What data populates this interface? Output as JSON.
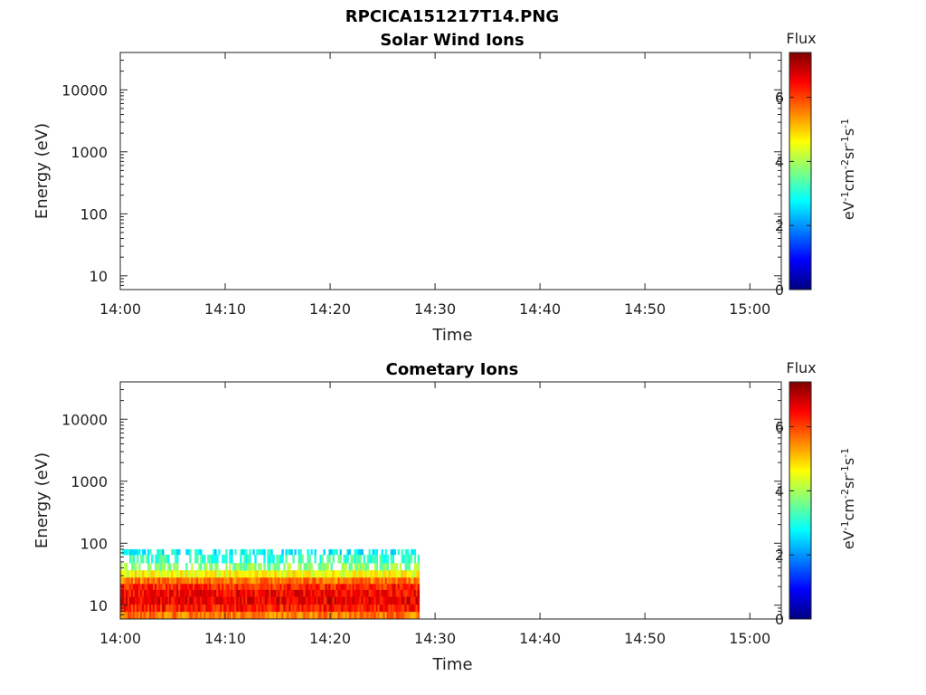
{
  "figure": {
    "title": "RPCICA151217T14.PNG"
  },
  "colorbar_stops": [
    "#00007f",
    "#0000ff",
    "#007fff",
    "#00ffff",
    "#7fff7f",
    "#ffff00",
    "#ff7f00",
    "#ff0000",
    "#7f0000"
  ],
  "chart_data": [
    {
      "type": "heatmap",
      "title": "Solar Wind Ions",
      "xlabel": "Time",
      "ylabel": "Energy (eV)",
      "y_scale": "log",
      "ylim": [
        6,
        40000
      ],
      "xlim": [
        "14:00",
        "15:03"
      ],
      "x_ticks": [
        "14:00",
        "14:10",
        "14:20",
        "14:30",
        "14:40",
        "14:50",
        "15:00"
      ],
      "y_ticks": [
        {
          "value": 10,
          "label": "10"
        },
        {
          "value": 100,
          "label": "100"
        },
        {
          "value": 1000,
          "label": "1000"
        },
        {
          "value": 10000,
          "label": "10000"
        }
      ],
      "data_coverage": null,
      "colorbar": {
        "title": "Flux",
        "range": [
          0,
          7.4
        ],
        "ticks": [
          "0",
          "2",
          "4",
          "6"
        ],
        "label_parts": [
          "eV",
          "-1",
          "cm",
          "-2",
          "sr",
          "-1",
          "s",
          "-1"
        ]
      }
    },
    {
      "type": "heatmap",
      "title": "Cometary Ions",
      "xlabel": "Time",
      "ylabel": "Energy (eV)",
      "y_scale": "log",
      "ylim": [
        6,
        40000
      ],
      "xlim": [
        "14:00",
        "15:03"
      ],
      "x_ticks": [
        "14:00",
        "14:10",
        "14:20",
        "14:30",
        "14:40",
        "14:50",
        "15:00"
      ],
      "y_ticks": [
        {
          "value": 10,
          "label": "10"
        },
        {
          "value": 100,
          "label": "100"
        },
        {
          "value": 1000,
          "label": "1000"
        },
        {
          "value": 10000,
          "label": "10000"
        }
      ],
      "data_coverage": {
        "time_start": "14:00",
        "time_end": "14:28.5",
        "energy_min": 6,
        "energy_max": 80,
        "flux_profile": [
          {
            "energy": 7,
            "flux": 5.6
          },
          {
            "energy": 9,
            "flux": 6.3
          },
          {
            "energy": 12,
            "flux": 6.6
          },
          {
            "energy": 16,
            "flux": 6.5
          },
          {
            "energy": 20,
            "flux": 6.2
          },
          {
            "energy": 25,
            "flux": 5.6
          },
          {
            "energy": 32,
            "flux": 4.6
          },
          {
            "energy": 42,
            "flux": 3.8
          },
          {
            "energy": 55,
            "flux": 3.2
          },
          {
            "energy": 78,
            "flux": 2.8
          }
        ]
      },
      "colorbar": {
        "title": "Flux",
        "range": [
          0,
          7.4
        ],
        "ticks": [
          "0",
          "2",
          "4",
          "6"
        ],
        "label_parts": [
          "eV",
          "-1",
          "cm",
          "-2",
          "sr",
          "-1",
          "s",
          "-1"
        ]
      }
    }
  ]
}
